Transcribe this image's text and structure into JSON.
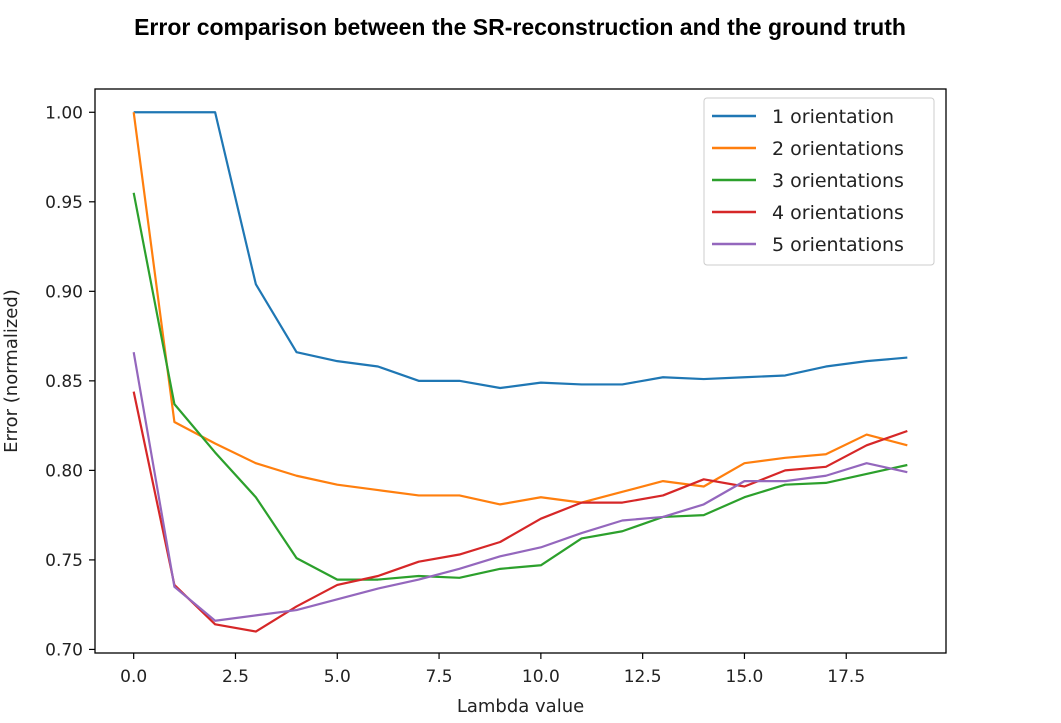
{
  "chart_data": {
    "type": "line",
    "title": "Error comparison between the SR-reconstruction and the ground truth",
    "xlabel": "Lambda value",
    "ylabel": "Error (normalized)",
    "xlim": [
      -0.95,
      19.95
    ],
    "ylim": [
      0.698,
      1.013
    ],
    "xticks": [
      0,
      2.5,
      5,
      7.5,
      10,
      12.5,
      15,
      17.5
    ],
    "xtick_labels": [
      "0.0",
      "2.5",
      "5.0",
      "7.5",
      "10.0",
      "12.5",
      "15.0",
      "17.5"
    ],
    "yticks": [
      0.7,
      0.75,
      0.8,
      0.85,
      0.9,
      0.95,
      1.0
    ],
    "ytick_labels": [
      "0.70",
      "0.75",
      "0.80",
      "0.85",
      "0.90",
      "0.95",
      "1.00"
    ],
    "grid": false,
    "legend": "top-right",
    "x": [
      0,
      1,
      2,
      3,
      4,
      5,
      6,
      7,
      8,
      9,
      10,
      11,
      12,
      13,
      14,
      15,
      16,
      17,
      18,
      19
    ],
    "series": [
      {
        "name": "1 orientation",
        "color": "#1f77b4",
        "values": [
          1.0,
          1.0,
          1.0,
          0.904,
          0.866,
          0.861,
          0.858,
          0.85,
          0.85,
          0.846,
          0.849,
          0.848,
          0.848,
          0.852,
          0.851,
          0.852,
          0.853,
          0.858,
          0.861,
          0.863
        ]
      },
      {
        "name": "2 orientations",
        "color": "#ff7f0e",
        "values": [
          1.0,
          0.827,
          0.815,
          0.804,
          0.797,
          0.792,
          0.789,
          0.786,
          0.786,
          0.781,
          0.785,
          0.782,
          0.788,
          0.794,
          0.791,
          0.804,
          0.807,
          0.809,
          0.82,
          0.814
        ]
      },
      {
        "name": "3 orientations",
        "color": "#2ca02c",
        "values": [
          0.955,
          0.837,
          0.81,
          0.785,
          0.751,
          0.739,
          0.739,
          0.741,
          0.74,
          0.745,
          0.747,
          0.762,
          0.766,
          0.774,
          0.775,
          0.785,
          0.792,
          0.793,
          0.798,
          0.803
        ]
      },
      {
        "name": "4 orientations",
        "color": "#d62728",
        "values": [
          0.844,
          0.736,
          0.714,
          0.71,
          0.724,
          0.736,
          0.741,
          0.749,
          0.753,
          0.76,
          0.773,
          0.782,
          0.782,
          0.786,
          0.795,
          0.791,
          0.8,
          0.802,
          0.814,
          0.822
        ]
      },
      {
        "name": "5 orientations",
        "color": "#9467bd",
        "values": [
          0.866,
          0.735,
          0.716,
          0.719,
          0.722,
          0.728,
          0.734,
          0.739,
          0.745,
          0.752,
          0.757,
          0.765,
          0.772,
          0.774,
          0.781,
          0.794,
          0.794,
          0.797,
          0.804,
          0.799
        ]
      }
    ]
  }
}
